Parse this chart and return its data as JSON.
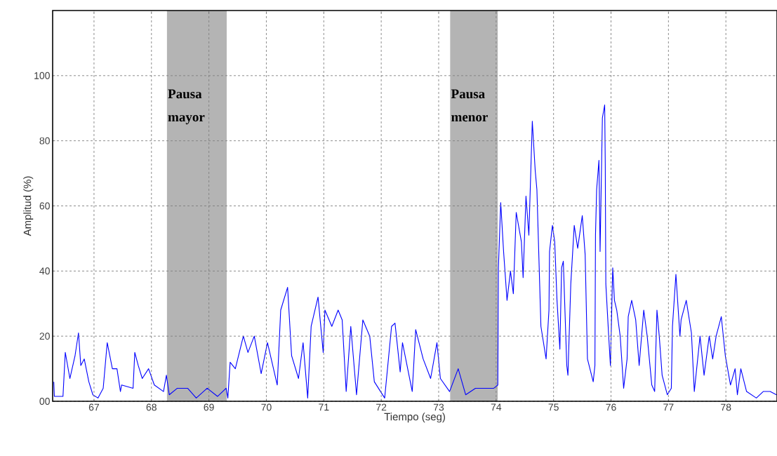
{
  "chart_data": {
    "type": "line",
    "xlabel": "Tiempo (seg)",
    "ylabel": "Amplitud (%)",
    "xlim": [
      66.28,
      78.89
    ],
    "ylim": [
      0,
      120
    ],
    "xticks": [
      67,
      68,
      69,
      70,
      71,
      72,
      73,
      74,
      75,
      76,
      77,
      78
    ],
    "yticks": [
      {
        "value": 0,
        "label": "00"
      },
      20,
      40,
      60,
      80,
      100
    ],
    "grid": true,
    "bands": [
      {
        "axis": "x",
        "from": 68.27,
        "to": 69.31,
        "label": "Pausa mayor",
        "color": "#b4b4b4"
      },
      {
        "axis": "x",
        "from": 73.2,
        "to": 74.03,
        "label": "Pausa menor",
        "color": "#b4b4b4"
      }
    ],
    "series": [
      {
        "color": "#0000ff",
        "x": [
          66.3,
          66.31,
          66.46,
          66.5,
          66.58,
          66.67,
          66.73,
          66.77,
          66.83,
          66.91,
          66.98,
          67.07,
          67.16,
          67.23,
          67.32,
          67.4,
          67.46,
          67.48,
          67.68,
          67.71,
          67.77,
          67.84,
          67.95,
          68.05,
          68.21,
          68.26,
          68.31,
          68.45,
          68.63,
          68.78,
          68.97,
          69.15,
          69.3,
          69.33,
          69.37,
          69.46,
          69.6,
          69.68,
          69.79,
          69.91,
          70.02,
          70.19,
          70.25,
          70.37,
          70.44,
          70.56,
          70.64,
          70.72,
          70.78,
          70.9,
          70.99,
          71.02,
          71.14,
          71.25,
          71.32,
          71.39,
          71.47,
          71.57,
          71.68,
          71.8,
          71.88,
          72.06,
          72.18,
          72.24,
          72.33,
          72.37,
          72.54,
          72.6,
          72.73,
          72.86,
          72.97,
          73.03,
          73.19,
          73.34,
          73.47,
          73.64,
          73.96,
          74.03,
          74.04,
          74.08,
          74.13,
          74.19,
          74.25,
          74.3,
          74.35,
          74.44,
          74.47,
          74.52,
          74.57,
          74.63,
          74.68,
          74.71,
          74.78,
          74.87,
          74.92,
          74.93,
          74.98,
          75.02,
          75.06,
          75.11,
          75.14,
          75.17,
          75.23,
          75.25,
          75.3,
          75.36,
          75.42,
          75.5,
          75.55,
          75.59,
          75.69,
          75.72,
          75.73,
          75.75,
          75.79,
          75.81,
          75.85,
          75.89,
          75.9,
          75.91,
          75.96,
          75.99,
          76.03,
          76.06,
          76.1,
          76.16,
          76.22,
          76.28,
          76.3,
          76.36,
          76.43,
          76.49,
          76.57,
          76.63,
          76.71,
          76.76,
          76.8,
          76.84,
          76.89,
          76.98,
          77.05,
          77.07,
          77.13,
          77.2,
          77.22,
          77.31,
          77.4,
          77.45,
          77.55,
          77.62,
          77.71,
          77.77,
          77.83,
          77.92,
          77.99,
          78.08,
          78.16,
          78.2,
          78.26,
          78.36,
          78.53,
          78.65,
          78.77,
          78.88
        ],
        "values": [
          6,
          1.5,
          1.5,
          15,
          7,
          14,
          21,
          11,
          13,
          6,
          2,
          1,
          4,
          18,
          10,
          10,
          3,
          5,
          4,
          15,
          11,
          7,
          10,
          5,
          3,
          8,
          2,
          4,
          4,
          1,
          4,
          1.5,
          4,
          1,
          12,
          10,
          20,
          15,
          20,
          8.5,
          18,
          5,
          28,
          35,
          14,
          7,
          18,
          1,
          23,
          32,
          15,
          28,
          23,
          28,
          25,
          3,
          23,
          2,
          25,
          20,
          6,
          1,
          23,
          24,
          9,
          18,
          3,
          22,
          13,
          7,
          18,
          7,
          3,
          10,
          2,
          4,
          4,
          5,
          41,
          61,
          46,
          31,
          40,
          33,
          58,
          49,
          38,
          63,
          51,
          86,
          71,
          65,
          23,
          13,
          28,
          46,
          54,
          49,
          31,
          16,
          41,
          43,
          11,
          8,
          36,
          54,
          47,
          57,
          45,
          13,
          6,
          11,
          51,
          65,
          74,
          46,
          87,
          91,
          73,
          36,
          20,
          11,
          41,
          31,
          28,
          20,
          4,
          13,
          26,
          31,
          25,
          11,
          28,
          20,
          5,
          3,
          28,
          20,
          8,
          2,
          4,
          23,
          39,
          20,
          25,
          31,
          21,
          3,
          20,
          8,
          20,
          13,
          20,
          26,
          14,
          5,
          10,
          2,
          10,
          3,
          1,
          3,
          3,
          2
        ]
      }
    ]
  }
}
